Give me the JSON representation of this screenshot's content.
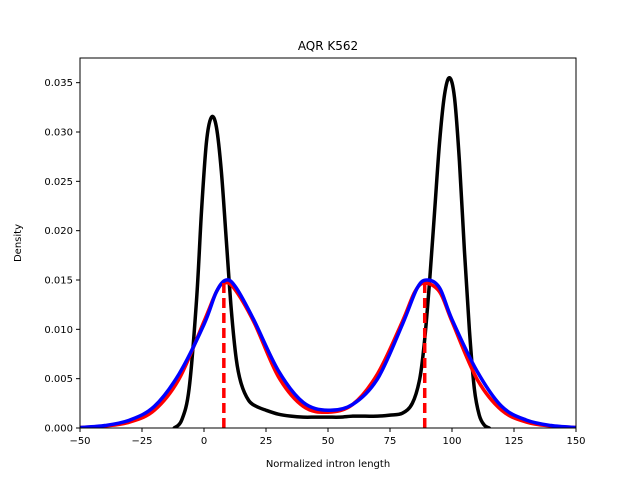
{
  "chart_data": {
    "type": "line",
    "title": "AQR K562",
    "xlabel": "Normalized intron length",
    "ylabel": "Density",
    "xlim": [
      -50,
      150
    ],
    "ylim": [
      0,
      0.0375
    ],
    "xticks": [
      -50,
      -25,
      0,
      25,
      50,
      75,
      100,
      125,
      150
    ],
    "xtick_labels": [
      "−50",
      "−25",
      "0",
      "25",
      "50",
      "75",
      "100",
      "125",
      "150"
    ],
    "yticks": [
      0,
      0.005,
      0.01,
      0.015,
      0.02,
      0.025,
      0.03,
      0.035
    ],
    "ytick_labels": [
      "0.000",
      "0.005",
      "0.010",
      "0.015",
      "0.020",
      "0.025",
      "0.030",
      "0.035"
    ],
    "grid": false,
    "legend": "none",
    "series": [
      {
        "color": "#000000",
        "style": "solid",
        "x": [
          -12,
          -9,
          -6,
          -3,
          -1,
          1,
          3,
          5,
          7,
          9,
          11,
          13,
          15,
          18,
          21,
          25,
          30,
          35,
          40,
          45,
          50,
          55,
          60,
          65,
          70,
          75,
          80,
          84,
          87,
          89,
          91,
          93,
          95,
          97,
          99,
          101,
          103,
          105,
          107,
          109,
          111,
          113,
          115
        ],
        "y": [
          0,
          0.0008,
          0.004,
          0.013,
          0.022,
          0.029,
          0.0315,
          0.0305,
          0.026,
          0.019,
          0.012,
          0.007,
          0.0045,
          0.0028,
          0.0022,
          0.0018,
          0.0014,
          0.0012,
          0.0011,
          0.0011,
          0.0011,
          0.0011,
          0.0012,
          0.0012,
          0.0012,
          0.0013,
          0.0015,
          0.0025,
          0.005,
          0.009,
          0.015,
          0.022,
          0.029,
          0.0338,
          0.0355,
          0.0335,
          0.027,
          0.018,
          0.01,
          0.004,
          0.0013,
          0.0003,
          0
        ]
      },
      {
        "color": "#ff0000",
        "style": "solid",
        "x": [
          -50,
          -40,
          -30,
          -20,
          -10,
          0,
          5,
          8,
          12,
          20,
          30,
          40,
          50,
          60,
          70,
          80,
          85,
          89,
          95,
          100,
          110,
          120,
          130,
          140,
          150
        ],
        "y": [
          5e-05,
          0.0002,
          0.0006,
          0.0018,
          0.005,
          0.0108,
          0.0138,
          0.0147,
          0.0142,
          0.0108,
          0.0052,
          0.0022,
          0.0016,
          0.0024,
          0.0055,
          0.0108,
          0.0138,
          0.0147,
          0.0138,
          0.0108,
          0.005,
          0.0018,
          0.0006,
          0.0002,
          5e-05
        ]
      },
      {
        "color": "#0000ff",
        "style": "solid",
        "x": [
          -50,
          -40,
          -30,
          -20,
          -10,
          0,
          5,
          9,
          13,
          20,
          30,
          40,
          50,
          60,
          70,
          80,
          86,
          90,
          95,
          100,
          110,
          120,
          130,
          140,
          150
        ],
        "y": [
          5e-05,
          0.00025,
          0.0008,
          0.0022,
          0.0055,
          0.0105,
          0.0138,
          0.015,
          0.0142,
          0.011,
          0.0058,
          0.0026,
          0.0018,
          0.0024,
          0.005,
          0.0105,
          0.0142,
          0.015,
          0.0142,
          0.011,
          0.0058,
          0.0022,
          0.0008,
          0.00025,
          5e-05
        ]
      }
    ],
    "vlines": [
      {
        "x": 8,
        "y": 0.0147,
        "color": "#ff0000",
        "style": "dashed"
      },
      {
        "x": 89,
        "y": 0.0147,
        "color": "#ff0000",
        "style": "dashed"
      }
    ]
  }
}
